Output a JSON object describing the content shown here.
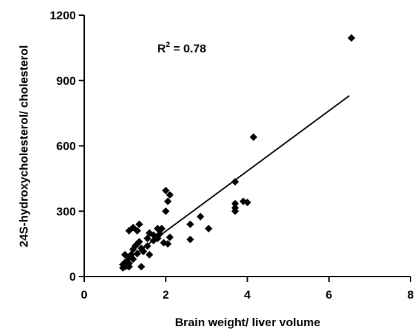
{
  "chart_data": {
    "type": "scatter",
    "xlabel": "Brain weight/ liver volume",
    "ylabel": "24S-hydroxycholesterol/ cholesterol",
    "xlim": [
      0,
      8
    ],
    "ylim": [
      0,
      1200
    ],
    "xticks": [
      0,
      2,
      4,
      6,
      8
    ],
    "yticks": [
      0,
      300,
      600,
      900,
      1200
    ],
    "xtick_labels": [
      "0",
      "2",
      "4",
      "6",
      "8"
    ],
    "ytick_labels": [
      "0",
      "300",
      "600",
      "900",
      "1200"
    ],
    "grid": false,
    "annotation": {
      "r2_prefix": "R",
      "r2_exp": "2",
      "r2_value": " = 0.78"
    },
    "fit_line": {
      "x": [
        1.0,
        6.5
      ],
      "y": [
        70,
        830
      ]
    },
    "points": [
      [
        6.55,
        1095
      ],
      [
        4.15,
        640
      ],
      [
        3.7,
        435
      ],
      [
        3.7,
        335
      ],
      [
        3.7,
        315
      ],
      [
        3.7,
        300
      ],
      [
        3.9,
        345
      ],
      [
        4.0,
        340
      ],
      [
        2.0,
        395
      ],
      [
        2.1,
        375
      ],
      [
        2.05,
        345
      ],
      [
        2.0,
        300
      ],
      [
        2.85,
        275
      ],
      [
        3.05,
        220
      ],
      [
        2.6,
        240
      ],
      [
        2.6,
        170
      ],
      [
        2.1,
        180
      ],
      [
        2.05,
        150
      ],
      [
        1.8,
        220
      ],
      [
        1.9,
        220
      ],
      [
        1.85,
        195
      ],
      [
        1.8,
        175
      ],
      [
        1.95,
        155
      ],
      [
        1.6,
        200
      ],
      [
        1.7,
        190
      ],
      [
        1.7,
        165
      ],
      [
        1.55,
        175
      ],
      [
        1.55,
        140
      ],
      [
        1.6,
        100
      ],
      [
        1.35,
        240
      ],
      [
        1.2,
        225
      ],
      [
        1.3,
        210
      ],
      [
        1.1,
        210
      ],
      [
        1.35,
        160
      ],
      [
        1.3,
        150
      ],
      [
        1.25,
        140
      ],
      [
        1.4,
        130
      ],
      [
        1.45,
        115
      ],
      [
        1.2,
        125
      ],
      [
        1.3,
        105
      ],
      [
        1.15,
        100
      ],
      [
        1.4,
        45
      ],
      [
        1.1,
        90
      ],
      [
        1.2,
        80
      ],
      [
        1.0,
        100
      ],
      [
        1.05,
        70
      ],
      [
        1.0,
        65
      ],
      [
        1.1,
        60
      ],
      [
        0.95,
        55
      ],
      [
        1.05,
        50
      ],
      [
        1.0,
        45
      ],
      [
        0.95,
        40
      ],
      [
        1.1,
        45
      ]
    ]
  }
}
